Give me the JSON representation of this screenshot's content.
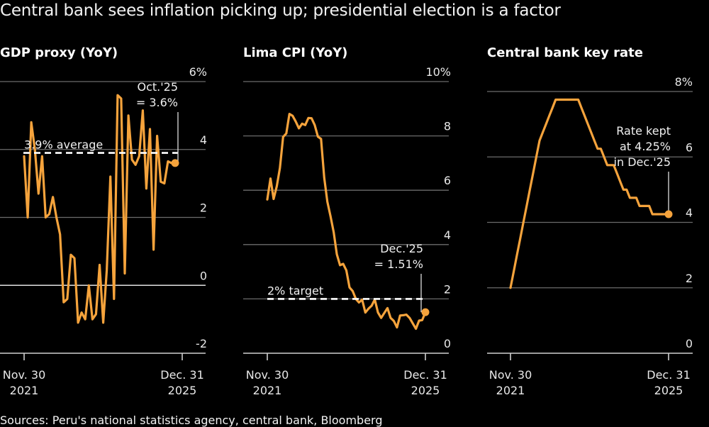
{
  "title": "Central bank sees inflation picking up; presidential election is a factor",
  "source": "Sources: Peru's national statistics agency, central bank, Bloomberg",
  "colors": {
    "series": "#f5a33c",
    "background": "#000000",
    "text": "#ffffff"
  },
  "chart_data": [
    {
      "type": "line",
      "title": "GDP proxy (YoY)",
      "ylim": [
        -2,
        6
      ],
      "yticks": [
        "6%",
        "4",
        "2",
        "0",
        "-2"
      ],
      "ytick_values": [
        6,
        4,
        2,
        0,
        -2
      ],
      "xtick_labels": [
        [
          "Nov. 30",
          "2021"
        ],
        [
          "Dec. 31",
          "2025"
        ]
      ],
      "x_range": [
        "2021-11",
        "2025-10"
      ],
      "reference_line": {
        "value": 3.9,
        "label": "3.9% average"
      },
      "annotation": {
        "lines": [
          "Oct.'25",
          "= 3.6%"
        ],
        "value": 3.6
      },
      "series": [
        {
          "name": "GDP proxy (YoY)",
          "values": [
            3.8,
            2.0,
            4.8,
            4.0,
            2.7,
            3.8,
            2.0,
            2.1,
            2.6,
            2.0,
            1.5,
            -0.5,
            -0.4,
            0.9,
            0.8,
            -1.1,
            -0.8,
            -1.0,
            0.0,
            -1.0,
            -0.85,
            0.6,
            -1.1,
            0.45,
            3.2,
            -0.4,
            5.6,
            5.5,
            0.35,
            5.0,
            3.7,
            3.55,
            3.8,
            5.15,
            2.85,
            4.6,
            1.05,
            4.4,
            3.05,
            3.0,
            3.65,
            3.6,
            3.6
          ]
        }
      ]
    },
    {
      "type": "line",
      "title": "Lima CPI (YoY)",
      "ylim": [
        0,
        10
      ],
      "yticks": [
        "10%",
        "8",
        "6",
        "4",
        "2",
        "0"
      ],
      "ytick_values": [
        10,
        8,
        6,
        4,
        2,
        0
      ],
      "xtick_labels": [
        [
          "Nov. 30",
          "2021"
        ],
        [
          "Dec. 31",
          "2025"
        ]
      ],
      "x_range": [
        "2021-11",
        "2025-12"
      ],
      "reference_line": {
        "value": 2,
        "label": "2% target"
      },
      "annotation": {
        "lines": [
          "Dec.'25",
          "= 1.51%"
        ],
        "value": 1.51
      },
      "series": [
        {
          "name": "Lima CPI (YoY)",
          "values": [
            5.66,
            6.43,
            5.68,
            6.15,
            6.82,
            7.96,
            8.09,
            8.81,
            8.74,
            8.53,
            8.28,
            8.45,
            8.4,
            8.66,
            8.65,
            8.4,
            7.97,
            7.89,
            6.46,
            5.58,
            5.04,
            4.45,
            3.64,
            3.24,
            3.29,
            3.05,
            2.42,
            2.29,
            2.0,
            1.87,
            1.97,
            1.5,
            1.64,
            1.75,
            1.98,
            1.5,
            1.3,
            1.48,
            1.66,
            1.3,
            1.19,
            0.95,
            1.39,
            1.4,
            1.42,
            1.3,
            1.1,
            0.9,
            1.2,
            1.22,
            1.51
          ]
        }
      ]
    },
    {
      "type": "line",
      "title": "Central bank key rate",
      "ylim": [
        0,
        8
      ],
      "yticks": [
        "8%",
        "6",
        "4",
        "2",
        "0"
      ],
      "ytick_values": [
        8,
        6,
        4,
        2,
        0
      ],
      "xtick_labels": [
        [
          "Nov. 30",
          "2021"
        ],
        [
          "Dec. 31",
          "2025"
        ]
      ],
      "x_range": [
        "2021-11",
        "2025-12"
      ],
      "annotation": {
        "lines": [
          "Rate kept",
          "at 4.25%",
          "in Dec.'25"
        ],
        "value": 4.25
      },
      "series": [
        {
          "name": "Key rate",
          "values": [
            2.0,
            2.5,
            3.0,
            3.5,
            4.0,
            4.5,
            5.0,
            5.5,
            6.0,
            6.5,
            6.75,
            7.0,
            7.25,
            7.5,
            7.75,
            7.75,
            7.75,
            7.75,
            7.75,
            7.75,
            7.75,
            7.75,
            7.5,
            7.25,
            7.0,
            6.75,
            6.5,
            6.25,
            6.25,
            6.0,
            5.75,
            5.75,
            5.75,
            5.5,
            5.25,
            5.0,
            5.0,
            4.75,
            4.75,
            4.75,
            4.5,
            4.5,
            4.5,
            4.5,
            4.25,
            4.25,
            4.25,
            4.25,
            4.25,
            4.25
          ]
        }
      ]
    }
  ]
}
